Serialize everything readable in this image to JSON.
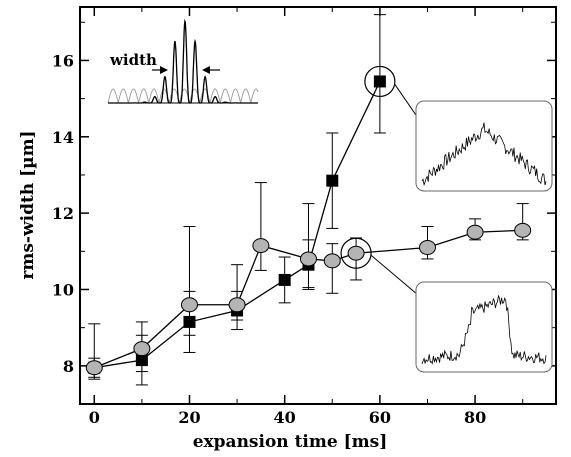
{
  "chart_data": {
    "type": "scatter",
    "xlabel": "expansion time [ms]",
    "ylabel": "rms-width [µm]",
    "xlim": [
      -3,
      97
    ],
    "ylim": [
      7.0,
      17.4
    ],
    "xticks": [
      0,
      20,
      40,
      60,
      80
    ],
    "yticks": [
      8,
      10,
      12,
      14,
      16
    ],
    "grid": false,
    "series": [
      {
        "marker": "square",
        "color": "#000000",
        "points": [
          {
            "x": 0,
            "y": 7.95,
            "lo": 7.7,
            "hi": 8.2
          },
          {
            "x": 10,
            "y": 8.15,
            "lo": 7.5,
            "hi": 8.8
          },
          {
            "x": 20,
            "y": 9.15,
            "lo": 8.35,
            "hi": 9.95
          },
          {
            "x": 30,
            "y": 9.45,
            "lo": 8.95,
            "hi": 9.95
          },
          {
            "x": 40,
            "y": 10.25,
            "lo": 9.65,
            "hi": 10.85
          },
          {
            "x": 45,
            "y": 10.65,
            "lo": 10.0,
            "hi": 11.3
          },
          {
            "x": 50,
            "y": 12.85,
            "lo": 11.6,
            "hi": 14.1
          },
          {
            "x": 60,
            "y": 15.45,
            "lo": 14.1,
            "hi": 17.2
          }
        ]
      },
      {
        "marker": "circle",
        "color": "#b4b4b4",
        "points": [
          {
            "x": 0,
            "y": 7.95,
            "lo": 7.65,
            "hi": 9.1
          },
          {
            "x": 10,
            "y": 8.45,
            "lo": 7.85,
            "hi": 9.15
          },
          {
            "x": 20,
            "y": 9.6,
            "lo": 8.8,
            "hi": 11.65
          },
          {
            "x": 30,
            "y": 9.6,
            "lo": 9.2,
            "hi": 10.65
          },
          {
            "x": 35,
            "y": 11.15,
            "lo": 10.5,
            "hi": 12.8
          },
          {
            "x": 45,
            "y": 10.8,
            "lo": 10.05,
            "hi": 12.25
          },
          {
            "x": 50,
            "y": 10.75,
            "lo": 9.9,
            "hi": 11.2
          },
          {
            "x": 55,
            "y": 10.95,
            "lo": 10.25,
            "hi": 11.35
          },
          {
            "x": 70,
            "y": 11.1,
            "lo": 10.8,
            "hi": 11.65
          },
          {
            "x": 80,
            "y": 11.5,
            "lo": 11.3,
            "hi": 11.85
          },
          {
            "x": 90,
            "y": 11.55,
            "lo": 11.3,
            "hi": 12.25
          }
        ]
      }
    ],
    "highlighted": [
      {
        "x": 60,
        "y": 15.45
      },
      {
        "x": 55,
        "y": 10.95
      }
    ],
    "annotations": {
      "width_label": "width"
    }
  }
}
